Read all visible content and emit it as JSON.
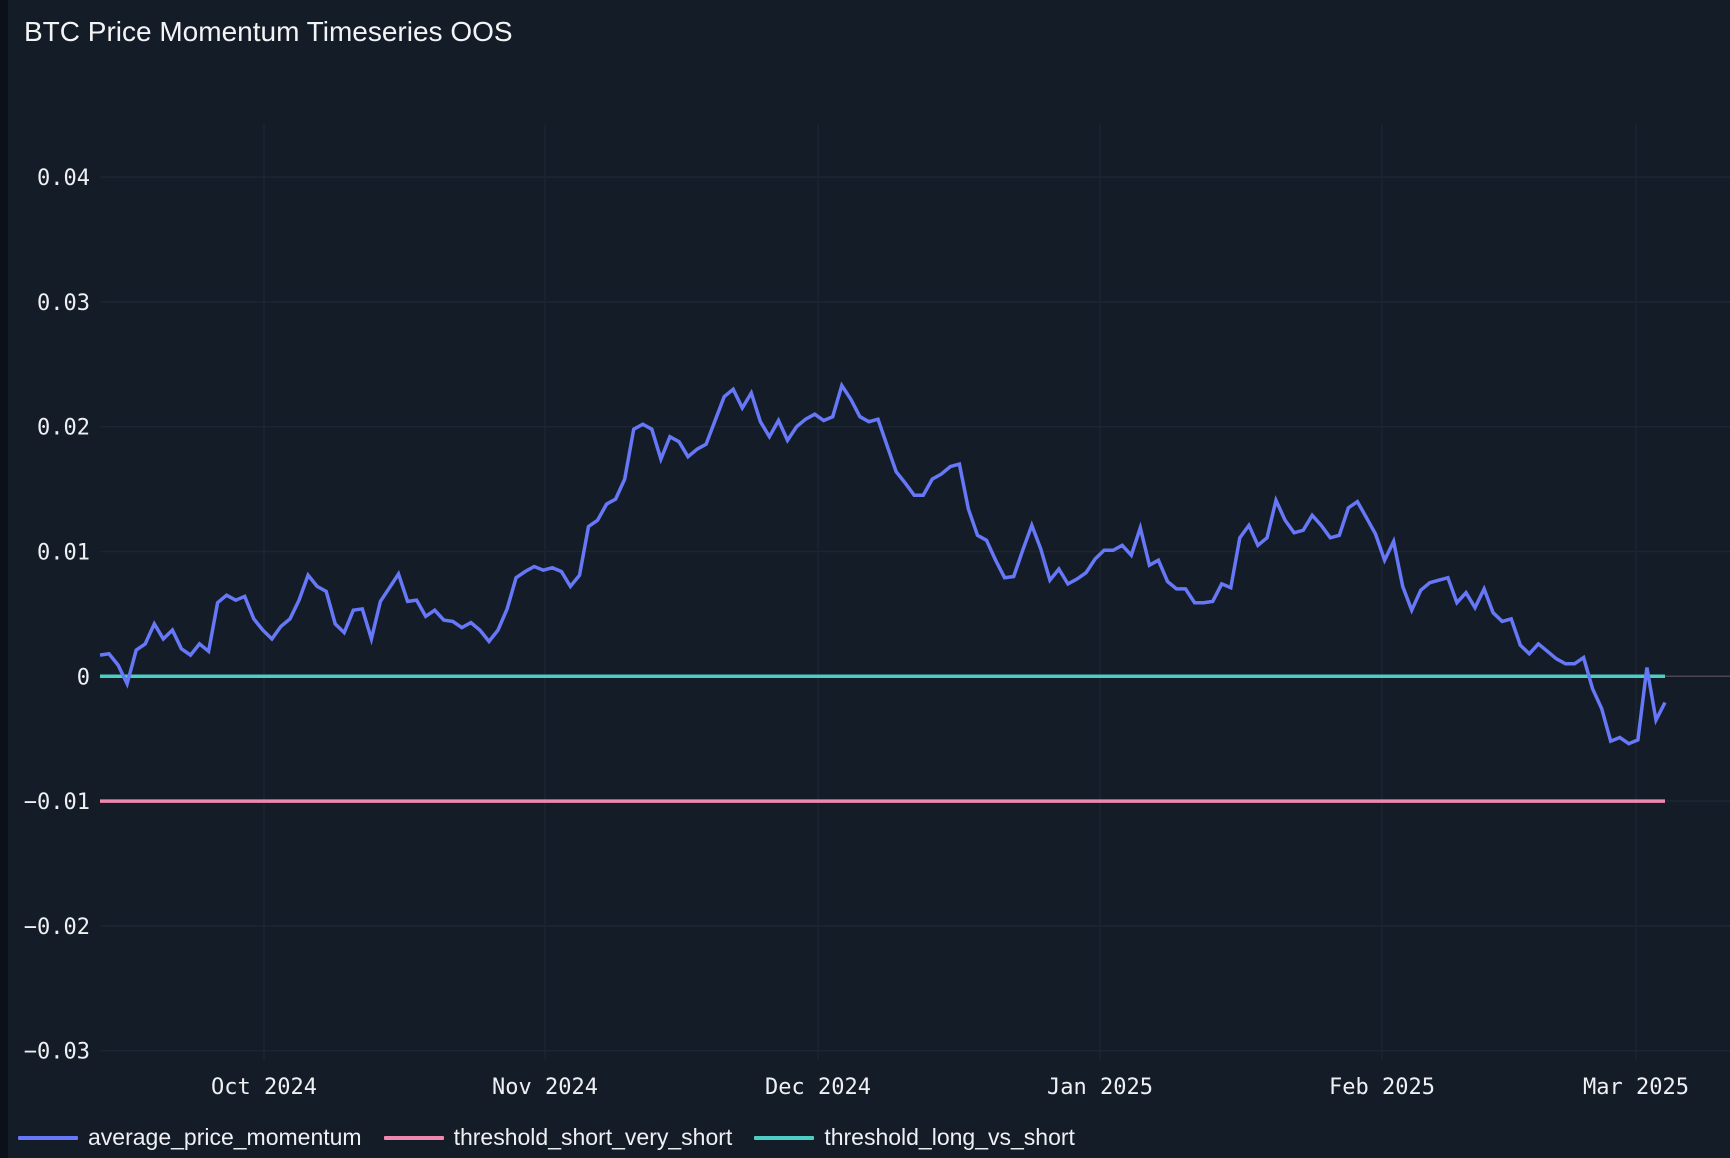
{
  "header": {
    "title": "BTC Price Momentum Timeseries OOS"
  },
  "colors": {
    "background": "#141c27",
    "grid": "#1c2532",
    "average_price_momentum": "#6677f7",
    "threshold_short_very_short": "#ee88b0",
    "threshold_long_vs_short": "#4ecdc4",
    "zero_axis": "#4a4550"
  },
  "legend": [
    {
      "label": "average_price_momentum",
      "color": "#6677f7"
    },
    {
      "label": "threshold_short_very_short",
      "color": "#ee88b0"
    },
    {
      "label": "threshold_long_vs_short",
      "color": "#4ecdc4"
    }
  ],
  "chart_data": {
    "type": "line",
    "title": "BTC Price Momentum Timeseries OOS",
    "xlabel": "",
    "ylabel": "",
    "ylim": [
      -0.03,
      0.04
    ],
    "y_ticks": [
      "0.04",
      "0.03",
      "0.02",
      "0.01",
      "0",
      "-0.01",
      "-0.02",
      "-0.03"
    ],
    "y_tick_values": [
      0.04,
      0.03,
      0.02,
      0.01,
      0,
      -0.01,
      -0.02,
      -0.03
    ],
    "x_ticks": [
      "Oct 2024",
      "Nov 2024",
      "Dec 2024",
      "Jan 2025",
      "Feb 2025",
      "Mar 2025"
    ],
    "x_range": [
      "2024-09-13",
      "2025-03-04"
    ],
    "x_frequency": "daily",
    "grid": true,
    "legend_position": "bottom-left",
    "series": [
      {
        "name": "average_price_momentum",
        "start_date": "2024-09-13",
        "values": [
          0.0017,
          0.0018,
          0.0009,
          -0.0006,
          0.0021,
          0.0026,
          0.0042,
          0.003,
          0.0037,
          0.0022,
          0.0017,
          0.0026,
          0.002,
          0.0059,
          0.0065,
          0.0061,
          0.0064,
          0.0046,
          0.0037,
          0.003,
          0.004,
          0.0046,
          0.0061,
          0.0081,
          0.0072,
          0.0068,
          0.0042,
          0.0035,
          0.0053,
          0.0054,
          0.003,
          0.006,
          0.0071,
          0.0082,
          0.006,
          0.0061,
          0.0048,
          0.0053,
          0.0045,
          0.0044,
          0.0039,
          0.0043,
          0.0037,
          0.0028,
          0.0037,
          0.0054,
          0.0079,
          0.0084,
          0.0088,
          0.0085,
          0.0087,
          0.0084,
          0.0072,
          0.0081,
          0.012,
          0.0125,
          0.0138,
          0.0142,
          0.0158,
          0.0198,
          0.0202,
          0.0198,
          0.0174,
          0.0192,
          0.0188,
          0.0176,
          0.0182,
          0.0186,
          0.0205,
          0.0224,
          0.023,
          0.0215,
          0.0227,
          0.0204,
          0.0192,
          0.0205,
          0.0189,
          0.02,
          0.0206,
          0.021,
          0.0205,
          0.0208,
          0.0233,
          0.0222,
          0.0208,
          0.0204,
          0.0206,
          0.0185,
          0.0164,
          0.0155,
          0.0145,
          0.0145,
          0.0158,
          0.0162,
          0.0168,
          0.017,
          0.0134,
          0.0113,
          0.0109,
          0.0093,
          0.0079,
          0.008,
          0.0101,
          0.0121,
          0.0102,
          0.0077,
          0.0086,
          0.0074,
          0.0078,
          0.0083,
          0.0094,
          0.0101,
          0.0101,
          0.0105,
          0.0097,
          0.0119,
          0.0089,
          0.0093,
          0.0076,
          0.007,
          0.007,
          0.0059,
          0.0059,
          0.006,
          0.0074,
          0.0071,
          0.0111,
          0.0121,
          0.0105,
          0.0111,
          0.0141,
          0.0125,
          0.0115,
          0.0117,
          0.0129,
          0.0121,
          0.0111,
          0.0113,
          0.0135,
          0.014,
          0.0127,
          0.0114,
          0.0093,
          0.0108,
          0.0072,
          0.0053,
          0.0069,
          0.0075,
          0.0077,
          0.0079,
          0.0059,
          0.0067,
          0.0055,
          0.007,
          0.0051,
          0.0044,
          0.0046,
          0.0025,
          0.0018,
          0.0026,
          0.002,
          0.0014,
          0.001,
          0.001,
          0.0015,
          -0.001,
          -0.0026,
          -0.0052,
          -0.0049,
          -0.0054,
          -0.0051,
          0.0007,
          -0.0035,
          -0.0021
        ]
      },
      {
        "name": "threshold_short_very_short",
        "constant": -0.01
      },
      {
        "name": "threshold_long_vs_short",
        "constant": 0
      }
    ]
  }
}
